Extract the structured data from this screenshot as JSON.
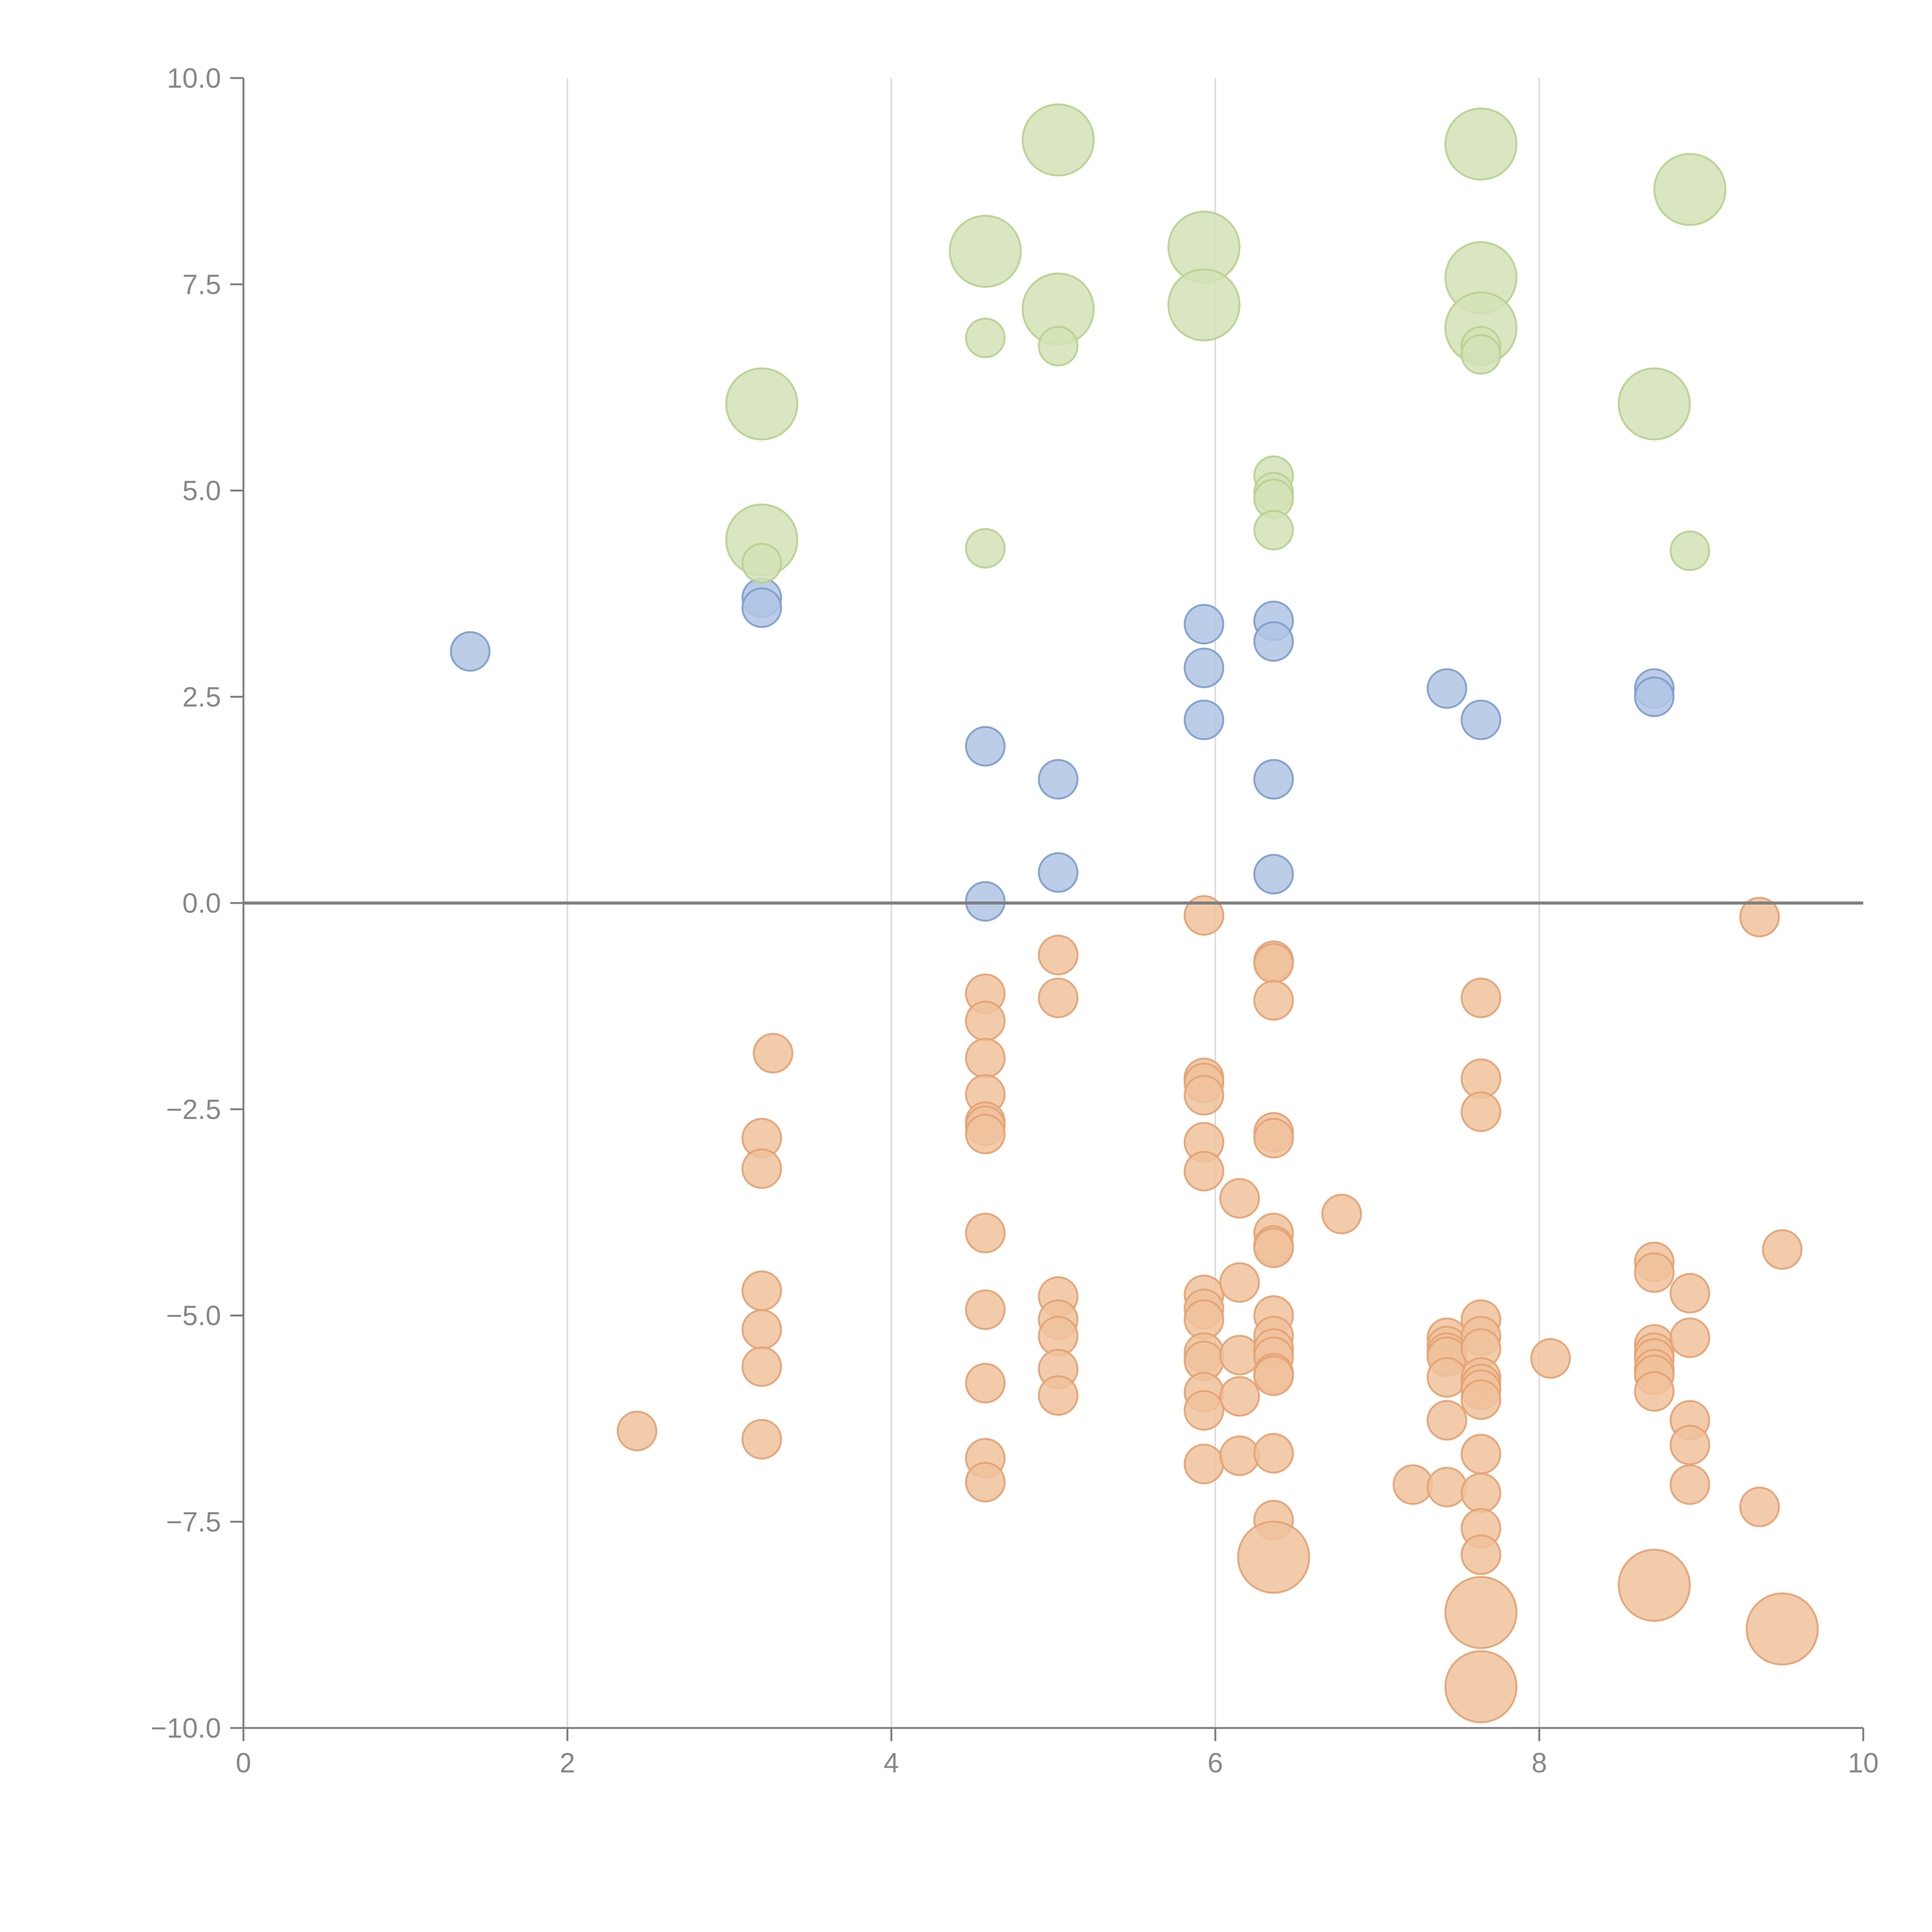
{
  "chart_data": {
    "type": "scatter",
    "title": "",
    "xlabel": "",
    "ylabel": "",
    "xlim": [
      0,
      10
    ],
    "ylim": [
      -10,
      10
    ],
    "x_ticks": [
      0,
      2,
      4,
      6,
      8,
      10
    ],
    "x_tick_labels": [
      "0",
      "2",
      "4",
      "6",
      "8",
      "10"
    ],
    "y_ticks": [
      10,
      7.5,
      5,
      2.5,
      0,
      -2.5,
      -5,
      -7.5,
      -10
    ],
    "y_tick_labels": [
      "10.0",
      "7.5",
      "5.0",
      "2.5",
      "0.0",
      "−2.5",
      "−5.0",
      "−7.5",
      "−10.0"
    ],
    "grid": "vertical",
    "zero_line": true,
    "legend": "none",
    "series": [
      {
        "color": "#b0c4e4",
        "stroke": "#7d9dcc",
        "points": [
          {
            "x": 1.4,
            "y": 3.05,
            "s": 1
          },
          {
            "x": 3.2,
            "y": 3.7,
            "s": 1
          },
          {
            "x": 3.2,
            "y": 3.58,
            "s": 1
          },
          {
            "x": 4.58,
            "y": 1.9,
            "s": 1
          },
          {
            "x": 4.58,
            "y": 0.02,
            "s": 1
          },
          {
            "x": 5.03,
            "y": 1.5,
            "s": 1
          },
          {
            "x": 5.03,
            "y": 0.37,
            "s": 1
          },
          {
            "x": 5.93,
            "y": 3.38,
            "s": 1
          },
          {
            "x": 5.93,
            "y": 2.85,
            "s": 1
          },
          {
            "x": 5.93,
            "y": 2.22,
            "s": 1
          },
          {
            "x": 6.36,
            "y": 3.42,
            "s": 1
          },
          {
            "x": 6.36,
            "y": 3.17,
            "s": 1
          },
          {
            "x": 6.36,
            "y": 1.5,
            "s": 1
          },
          {
            "x": 6.36,
            "y": 0.35,
            "s": 1
          },
          {
            "x": 7.43,
            "y": 2.6,
            "s": 1
          },
          {
            "x": 7.64,
            "y": 2.22,
            "s": 1
          },
          {
            "x": 8.71,
            "y": 2.6,
            "s": 1
          },
          {
            "x": 8.71,
            "y": 2.5,
            "s": 1
          }
        ]
      },
      {
        "color": "#d2e2b6",
        "stroke": "#b8d08f",
        "points": [
          {
            "x": 3.2,
            "y": 6.05,
            "s": 2
          },
          {
            "x": 3.2,
            "y": 4.4,
            "s": 2
          },
          {
            "x": 3.2,
            "y": 4.12,
            "s": 1
          },
          {
            "x": 4.58,
            "y": 7.9,
            "s": 2
          },
          {
            "x": 4.58,
            "y": 6.85,
            "s": 1
          },
          {
            "x": 4.58,
            "y": 4.3,
            "s": 1
          },
          {
            "x": 5.03,
            "y": 9.25,
            "s": 2
          },
          {
            "x": 5.03,
            "y": 7.2,
            "s": 2
          },
          {
            "x": 5.03,
            "y": 6.75,
            "s": 1
          },
          {
            "x": 5.93,
            "y": 7.95,
            "s": 2
          },
          {
            "x": 5.93,
            "y": 7.25,
            "s": 2
          },
          {
            "x": 6.36,
            "y": 5.18,
            "s": 1
          },
          {
            "x": 6.36,
            "y": 4.98,
            "s": 1
          },
          {
            "x": 6.36,
            "y": 4.9,
            "s": 1
          },
          {
            "x": 6.36,
            "y": 4.52,
            "s": 1
          },
          {
            "x": 7.64,
            "y": 9.2,
            "s": 2
          },
          {
            "x": 7.64,
            "y": 7.58,
            "s": 2
          },
          {
            "x": 7.64,
            "y": 6.97,
            "s": 2
          },
          {
            "x": 7.64,
            "y": 6.75,
            "s": 1
          },
          {
            "x": 7.64,
            "y": 6.65,
            "s": 1
          },
          {
            "x": 8.71,
            "y": 6.05,
            "s": 2
          },
          {
            "x": 8.93,
            "y": 8.65,
            "s": 2
          },
          {
            "x": 8.93,
            "y": 4.27,
            "s": 1
          }
        ]
      },
      {
        "color": "#f0c29c",
        "stroke": "#e3a273",
        "points": [
          {
            "x": 2.43,
            "y": -6.4,
            "s": 1
          },
          {
            "x": 3.2,
            "y": -2.85,
            "s": 1
          },
          {
            "x": 3.2,
            "y": -3.22,
            "s": 1
          },
          {
            "x": 3.2,
            "y": -4.7,
            "s": 1
          },
          {
            "x": 3.2,
            "y": -5.17,
            "s": 1
          },
          {
            "x": 3.2,
            "y": -5.62,
            "s": 1
          },
          {
            "x": 3.2,
            "y": -6.5,
            "s": 1
          },
          {
            "x": 3.27,
            "y": -1.82,
            "s": 1
          },
          {
            "x": 4.58,
            "y": -1.1,
            "s": 1
          },
          {
            "x": 4.58,
            "y": -1.43,
            "s": 1
          },
          {
            "x": 4.58,
            "y": -1.88,
            "s": 1
          },
          {
            "x": 4.58,
            "y": -2.32,
            "s": 1
          },
          {
            "x": 4.58,
            "y": -2.65,
            "s": 1
          },
          {
            "x": 4.58,
            "y": -2.7,
            "s": 1
          },
          {
            "x": 4.58,
            "y": -2.8,
            "s": 1
          },
          {
            "x": 4.58,
            "y": -4.0,
            "s": 1
          },
          {
            "x": 4.58,
            "y": -4.93,
            "s": 1
          },
          {
            "x": 4.58,
            "y": -5.82,
            "s": 1
          },
          {
            "x": 4.58,
            "y": -6.73,
            "s": 1
          },
          {
            "x": 4.58,
            "y": -7.02,
            "s": 1
          },
          {
            "x": 5.03,
            "y": -0.63,
            "s": 1
          },
          {
            "x": 5.03,
            "y": -1.15,
            "s": 1
          },
          {
            "x": 5.03,
            "y": -4.77,
            "s": 1
          },
          {
            "x": 5.03,
            "y": -5.05,
            "s": 1
          },
          {
            "x": 5.03,
            "y": -5.25,
            "s": 1
          },
          {
            "x": 5.03,
            "y": -5.65,
            "s": 1
          },
          {
            "x": 5.03,
            "y": -5.97,
            "s": 1
          },
          {
            "x": 5.93,
            "y": -0.15,
            "s": 1
          },
          {
            "x": 5.93,
            "y": -2.12,
            "s": 1
          },
          {
            "x": 5.93,
            "y": -2.18,
            "s": 1
          },
          {
            "x": 5.93,
            "y": -2.33,
            "s": 1
          },
          {
            "x": 5.93,
            "y": -2.9,
            "s": 1
          },
          {
            "x": 5.93,
            "y": -3.25,
            "s": 1
          },
          {
            "x": 5.93,
            "y": -4.75,
            "s": 1
          },
          {
            "x": 5.93,
            "y": -4.92,
            "s": 1
          },
          {
            "x": 5.93,
            "y": -5.05,
            "s": 1
          },
          {
            "x": 5.93,
            "y": -5.45,
            "s": 1
          },
          {
            "x": 5.93,
            "y": -5.55,
            "s": 1
          },
          {
            "x": 5.93,
            "y": -5.93,
            "s": 1
          },
          {
            "x": 5.93,
            "y": -6.15,
            "s": 1
          },
          {
            "x": 5.93,
            "y": -6.8,
            "s": 1
          },
          {
            "x": 6.15,
            "y": -3.58,
            "s": 1
          },
          {
            "x": 6.15,
            "y": -4.6,
            "s": 1
          },
          {
            "x": 6.15,
            "y": -5.48,
            "s": 1
          },
          {
            "x": 6.15,
            "y": -5.98,
            "s": 1
          },
          {
            "x": 6.15,
            "y": -6.7,
            "s": 1
          },
          {
            "x": 6.36,
            "y": -0.7,
            "s": 1
          },
          {
            "x": 6.36,
            "y": -0.73,
            "s": 1
          },
          {
            "x": 6.36,
            "y": -1.18,
            "s": 1
          },
          {
            "x": 6.36,
            "y": -2.78,
            "s": 1
          },
          {
            "x": 6.36,
            "y": -2.85,
            "s": 1
          },
          {
            "x": 6.36,
            "y": -4.0,
            "s": 1
          },
          {
            "x": 6.36,
            "y": -4.15,
            "s": 1
          },
          {
            "x": 6.36,
            "y": -4.18,
            "s": 1
          },
          {
            "x": 6.36,
            "y": -5.0,
            "s": 1
          },
          {
            "x": 6.36,
            "y": -5.25,
            "s": 1
          },
          {
            "x": 6.36,
            "y": -5.4,
            "s": 1
          },
          {
            "x": 6.36,
            "y": -5.5,
            "s": 1
          },
          {
            "x": 6.36,
            "y": -5.7,
            "s": 1
          },
          {
            "x": 6.36,
            "y": -5.73,
            "s": 1
          },
          {
            "x": 6.36,
            "y": -6.67,
            "s": 1
          },
          {
            "x": 6.36,
            "y": -7.48,
            "s": 1
          },
          {
            "x": 6.36,
            "y": -7.93,
            "s": 2
          },
          {
            "x": 6.78,
            "y": -3.77,
            "s": 1
          },
          {
            "x": 7.22,
            "y": -7.05,
            "s": 1
          },
          {
            "x": 7.43,
            "y": -5.27,
            "s": 1
          },
          {
            "x": 7.43,
            "y": -5.37,
            "s": 1
          },
          {
            "x": 7.43,
            "y": -5.45,
            "s": 1
          },
          {
            "x": 7.43,
            "y": -5.5,
            "s": 1
          },
          {
            "x": 7.43,
            "y": -5.75,
            "s": 1
          },
          {
            "x": 7.43,
            "y": -6.27,
            "s": 1
          },
          {
            "x": 7.43,
            "y": -7.08,
            "s": 1
          },
          {
            "x": 7.64,
            "y": -1.15,
            "s": 1
          },
          {
            "x": 7.64,
            "y": -2.13,
            "s": 1
          },
          {
            "x": 7.64,
            "y": -2.53,
            "s": 1
          },
          {
            "x": 7.64,
            "y": -5.05,
            "s": 1
          },
          {
            "x": 7.64,
            "y": -5.25,
            "s": 1
          },
          {
            "x": 7.64,
            "y": -5.4,
            "s": 1
          },
          {
            "x": 7.64,
            "y": -5.75,
            "s": 1
          },
          {
            "x": 7.64,
            "y": -5.83,
            "s": 1
          },
          {
            "x": 7.64,
            "y": -5.9,
            "s": 1
          },
          {
            "x": 7.64,
            "y": -6.02,
            "s": 1
          },
          {
            "x": 7.64,
            "y": -6.68,
            "s": 1
          },
          {
            "x": 7.64,
            "y": -7.15,
            "s": 1
          },
          {
            "x": 7.64,
            "y": -7.58,
            "s": 1
          },
          {
            "x": 7.64,
            "y": -7.9,
            "s": 1
          },
          {
            "x": 7.64,
            "y": -8.6,
            "s": 2
          },
          {
            "x": 7.64,
            "y": -9.5,
            "s": 2
          },
          {
            "x": 8.07,
            "y": -5.52,
            "s": 1
          },
          {
            "x": 8.71,
            "y": -4.35,
            "s": 1
          },
          {
            "x": 8.71,
            "y": -4.48,
            "s": 1
          },
          {
            "x": 8.71,
            "y": -5.35,
            "s": 1
          },
          {
            "x": 8.71,
            "y": -5.45,
            "s": 1
          },
          {
            "x": 8.71,
            "y": -5.52,
            "s": 1
          },
          {
            "x": 8.71,
            "y": -5.65,
            "s": 1
          },
          {
            "x": 8.71,
            "y": -5.72,
            "s": 1
          },
          {
            "x": 8.71,
            "y": -5.92,
            "s": 1
          },
          {
            "x": 8.71,
            "y": -8.27,
            "s": 2
          },
          {
            "x": 8.93,
            "y": -4.73,
            "s": 1
          },
          {
            "x": 8.93,
            "y": -5.27,
            "s": 1
          },
          {
            "x": 8.93,
            "y": -6.27,
            "s": 1
          },
          {
            "x": 8.93,
            "y": -6.57,
            "s": 1
          },
          {
            "x": 8.93,
            "y": -7.05,
            "s": 1
          },
          {
            "x": 9.36,
            "y": -0.17,
            "s": 1
          },
          {
            "x": 9.36,
            "y": -7.32,
            "s": 1
          },
          {
            "x": 9.5,
            "y": -4.2,
            "s": 1
          },
          {
            "x": 9.5,
            "y": -8.8,
            "s": 2
          }
        ]
      }
    ]
  }
}
